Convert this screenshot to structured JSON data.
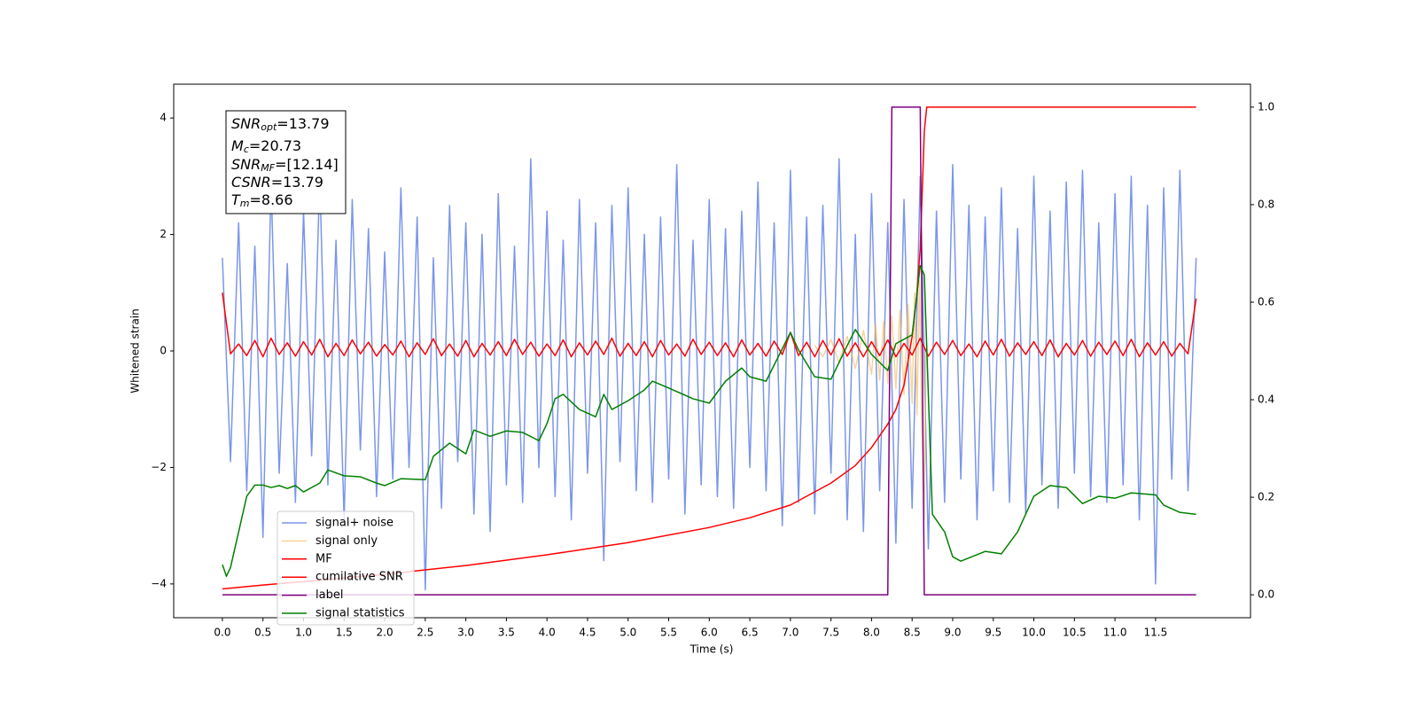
{
  "chart_data": {
    "type": "line",
    "xlabel": "Time (s)",
    "ylabel": "Whitened strain",
    "xlim": [
      -0.6,
      12.67
    ],
    "ylim": [
      -4.58,
      4.58
    ],
    "y2lim": [
      -0.047,
      1.047
    ],
    "xticks": [
      {
        "value": 0,
        "label": "0.0"
      },
      0.5,
      {
        "value": 1,
        "label": "1.0"
      },
      1.5,
      {
        "value": 2,
        "label": "2.0"
      },
      2.5,
      {
        "value": 3,
        "label": "3.0"
      },
      3.5,
      {
        "value": 4,
        "label": "4.0"
      },
      4.5,
      {
        "value": 5,
        "label": "5.0"
      },
      5.5,
      {
        "value": 6,
        "label": "6.0"
      },
      6.5,
      {
        "value": 7,
        "label": "7.0"
      },
      7.5,
      {
        "value": 8,
        "label": "8.0"
      },
      8.5,
      {
        "value": 9,
        "label": "9.0"
      },
      9.5,
      {
        "value": 10,
        "label": "10.0"
      },
      10.5,
      {
        "value": 11,
        "label": "11.0"
      },
      11.5
    ],
    "yticks": [
      {
        "value": -4,
        "label": "−4"
      },
      {
        "value": -2,
        "label": "−2"
      },
      0,
      2,
      4
    ],
    "y2ticks": [
      {
        "value": 0,
        "label": "0.0"
      },
      0.2,
      0.4,
      0.6,
      0.8,
      {
        "value": 1,
        "label": "1.0"
      }
    ],
    "annotation": [
      {
        "main": "SNR",
        "sub": "opt",
        "rest": "=13.79"
      },
      {
        "main": "M",
        "sub": "c",
        "rest": "=20.73"
      },
      {
        "main": "SNR",
        "sub": "MF",
        "rest": "=[12.14]"
      },
      {
        "main": "CSNR",
        "rest": "=13.79"
      },
      {
        "main": "T",
        "sub": "m",
        "rest": "=8.66"
      }
    ],
    "x": [
      0,
      0.1,
      0.2,
      0.3,
      0.4,
      0.5,
      0.6,
      0.7,
      0.8,
      0.9,
      1.0,
      1.1,
      1.2,
      1.3,
      1.4,
      1.5,
      1.6,
      1.7,
      1.8,
      1.9,
      2.0,
      2.1,
      2.2,
      2.3,
      2.4,
      2.5,
      2.6,
      2.7,
      2.8,
      2.9,
      3.0,
      3.1,
      3.2,
      3.3,
      3.4,
      3.5,
      3.6,
      3.7,
      3.8,
      3.9,
      4.0,
      4.1,
      4.2,
      4.3,
      4.4,
      4.5,
      4.6,
      4.7,
      4.8,
      4.9,
      5.0,
      5.1,
      5.2,
      5.3,
      5.4,
      5.5,
      5.6,
      5.7,
      5.8,
      5.9,
      6.0,
      6.1,
      6.2,
      6.3,
      6.4,
      6.5,
      6.6,
      6.7,
      6.8,
      6.9,
      7.0,
      7.1,
      7.2,
      7.3,
      7.4,
      7.5,
      7.6,
      7.7,
      7.8,
      7.9,
      8.0,
      8.1,
      8.2,
      8.3,
      8.4,
      8.5,
      8.6,
      8.7,
      8.8,
      8.9,
      9.0,
      9.1,
      9.2,
      9.3,
      9.4,
      9.5,
      9.6,
      9.7,
      9.8,
      9.9,
      10.0,
      10.1,
      10.2,
      10.3,
      10.4,
      10.5,
      10.6,
      10.7,
      10.8,
      10.9,
      11.0,
      11.1,
      11.2,
      11.3,
      11.4,
      11.5,
      11.6,
      11.7,
      11.8,
      11.9,
      12.0
    ],
    "series": [
      {
        "name": "signal+ noise",
        "color": "#7b96e8",
        "values": [
          1.6,
          -1.9,
          2.2,
          -2.4,
          1.8,
          -3.2,
          2.9,
          -2.1,
          1.5,
          -2.6,
          2.4,
          -1.8,
          3.0,
          -2.3,
          1.9,
          -2.9,
          2.6,
          -1.7,
          2.1,
          -2.5,
          1.7,
          -2.2,
          2.8,
          -2.0,
          2.3,
          -4.1,
          1.6,
          -2.7,
          2.5,
          -1.9,
          2.2,
          -2.8,
          2.0,
          -3.1,
          2.7,
          -2.3,
          1.8,
          -2.6,
          3.3,
          -2.0,
          2.4,
          -2.5,
          1.9,
          -2.9,
          2.6,
          -2.1,
          2.2,
          -3.6,
          2.5,
          -1.9,
          2.8,
          -2.4,
          2.0,
          -2.6,
          2.3,
          -2.2,
          3.2,
          -2.8,
          1.9,
          -2.3,
          2.6,
          -2.5,
          2.1,
          -2.7,
          2.4,
          -2.0,
          2.9,
          -2.4,
          2.2,
          -3.0,
          3.1,
          -2.6,
          2.3,
          -2.8,
          2.5,
          -2.1,
          3.3,
          -2.9,
          2.0,
          -3.1,
          2.7,
          -2.4,
          2.2,
          -3.3,
          2.6,
          -2.7,
          3.0,
          -3.4,
          2.4,
          -2.6,
          3.2,
          -2.2,
          2.5,
          -2.9,
          2.3,
          -2.4,
          2.8,
          -2.6,
          2.1,
          -2.8,
          3.0,
          -2.3,
          2.4,
          -2.7,
          2.9,
          -2.1,
          3.1,
          -2.5,
          2.2,
          -2.6,
          2.7,
          -2.3,
          3.0,
          -2.9,
          2.5,
          -4.0,
          2.8,
          -2.2,
          3.1,
          -2.4,
          1.6
        ]
      },
      {
        "name": "signal only",
        "color": "#f5b754",
        "x": [
          7.3,
          7.4,
          7.5,
          7.6,
          7.7,
          7.8,
          7.9,
          8.0,
          8.05,
          8.1,
          8.15,
          8.2,
          8.25,
          8.3,
          8.35,
          8.4,
          8.45,
          8.5,
          8.53,
          8.56,
          8.59,
          8.62,
          8.65,
          8.67
        ],
        "values": [
          0.1,
          -0.1,
          0.2,
          -0.2,
          0.25,
          -0.3,
          0.35,
          -0.4,
          0.45,
          -0.5,
          0.5,
          -0.55,
          0.6,
          -0.65,
          0.7,
          -0.75,
          0.8,
          -0.9,
          1.0,
          -1.1,
          1.2,
          -1.3,
          -2.9,
          0
        ]
      },
      {
        "name": "MF",
        "color": "red",
        "values": [
          1.0,
          -0.05,
          0.12,
          -0.08,
          0.18,
          -0.1,
          0.22,
          -0.06,
          0.14,
          -0.09,
          0.16,
          -0.07,
          0.2,
          -0.1,
          0.13,
          -0.08,
          0.19,
          -0.05,
          0.15,
          -0.09,
          0.11,
          -0.07,
          0.17,
          -0.1,
          0.14,
          -0.06,
          0.21,
          -0.08,
          0.12,
          -0.09,
          0.18,
          -0.1,
          0.13,
          -0.07,
          0.16,
          -0.08,
          0.2,
          -0.06,
          0.15,
          -0.09,
          0.12,
          -0.08,
          0.19,
          -0.1,
          0.14,
          -0.07,
          0.17,
          -0.06,
          0.22,
          -0.09,
          0.13,
          -0.08,
          0.16,
          -0.1,
          0.18,
          -0.07,
          0.12,
          -0.09,
          0.2,
          -0.06,
          0.15,
          -0.08,
          0.14,
          -0.1,
          0.19,
          -0.07,
          0.13,
          -0.09,
          0.17,
          -0.06,
          0.32,
          -0.08,
          0.15,
          -0.1,
          0.18,
          -0.07,
          0.21,
          -0.09,
          0.14,
          -0.1,
          0.16,
          -0.08,
          0.19,
          -0.1,
          0.13,
          -0.07,
          0.22,
          -0.09,
          0.15,
          -0.06,
          0.18,
          -0.08,
          0.12,
          -0.1,
          0.17,
          -0.07,
          0.2,
          -0.09,
          0.14,
          -0.06,
          0.16,
          -0.08,
          0.19,
          -0.1,
          0.13,
          -0.07,
          0.18,
          -0.09,
          0.15,
          -0.06,
          0.17,
          -0.08,
          0.2,
          -0.1,
          0.14,
          -0.07,
          0.16,
          -0.09,
          0.13,
          -0.05,
          0.9
        ]
      },
      {
        "name": "cumilative SNR",
        "color": "red",
        "axis": "y2",
        "x": [
          0,
          0.5,
          1,
          2,
          3,
          4,
          5,
          6,
          6.5,
          7,
          7.5,
          7.8,
          8,
          8.2,
          8.3,
          8.4,
          8.5,
          8.55,
          8.6,
          8.65,
          8.68,
          12
        ],
        "values": [
          0.012,
          0.02,
          0.027,
          0.042,
          0.06,
          0.082,
          0.107,
          0.138,
          0.158,
          0.184,
          0.229,
          0.265,
          0.302,
          0.35,
          0.38,
          0.43,
          0.53,
          0.6,
          0.71,
          0.95,
          1.0,
          1.0
        ]
      },
      {
        "name": "label",
        "color": "purple",
        "axis": "y2",
        "x": [
          0,
          8.2,
          8.25,
          8.6,
          8.65,
          12
        ],
        "values": [
          0,
          0,
          1,
          1,
          0,
          0
        ]
      },
      {
        "name": "signal statistics",
        "color": "green",
        "axis": "y2",
        "x": [
          0,
          0.05,
          0.1,
          0.2,
          0.3,
          0.4,
          0.5,
          0.6,
          0.7,
          0.8,
          0.9,
          1.0,
          1.2,
          1.3,
          1.5,
          1.7,
          1.9,
          2.0,
          2.2,
          2.5,
          2.6,
          2.8,
          3.0,
          3.1,
          3.3,
          3.5,
          3.7,
          3.9,
          4.0,
          4.1,
          4.2,
          4.4,
          4.6,
          4.7,
          4.8,
          5.0,
          5.2,
          5.3,
          5.5,
          5.8,
          6.0,
          6.2,
          6.4,
          6.5,
          6.7,
          7.0,
          7.1,
          7.3,
          7.5,
          7.7,
          7.8,
          8.0,
          8.2,
          8.3,
          8.5,
          8.6,
          8.65,
          8.75,
          8.9,
          9.0,
          9.1,
          9.4,
          9.6,
          9.8,
          10.0,
          10.2,
          10.4,
          10.6,
          10.8,
          11.0,
          11.2,
          11.5,
          11.6,
          11.8,
          12.0
        ],
        "values": [
          0.062,
          0.038,
          0.056,
          0.129,
          0.202,
          0.225,
          0.225,
          0.22,
          0.224,
          0.218,
          0.224,
          0.211,
          0.229,
          0.256,
          0.244,
          0.242,
          0.229,
          0.224,
          0.238,
          0.236,
          0.284,
          0.311,
          0.289,
          0.338,
          0.325,
          0.336,
          0.333,
          0.316,
          0.351,
          0.402,
          0.411,
          0.38,
          0.365,
          0.411,
          0.38,
          0.398,
          0.42,
          0.438,
          0.424,
          0.402,
          0.393,
          0.438,
          0.465,
          0.447,
          0.438,
          0.538,
          0.502,
          0.447,
          0.442,
          0.511,
          0.544,
          0.493,
          0.46,
          0.515,
          0.533,
          0.675,
          0.656,
          0.165,
          0.129,
          0.078,
          0.069,
          0.089,
          0.084,
          0.129,
          0.202,
          0.224,
          0.22,
          0.187,
          0.202,
          0.198,
          0.209,
          0.205,
          0.184,
          0.169,
          0.165
        ]
      }
    ]
  }
}
